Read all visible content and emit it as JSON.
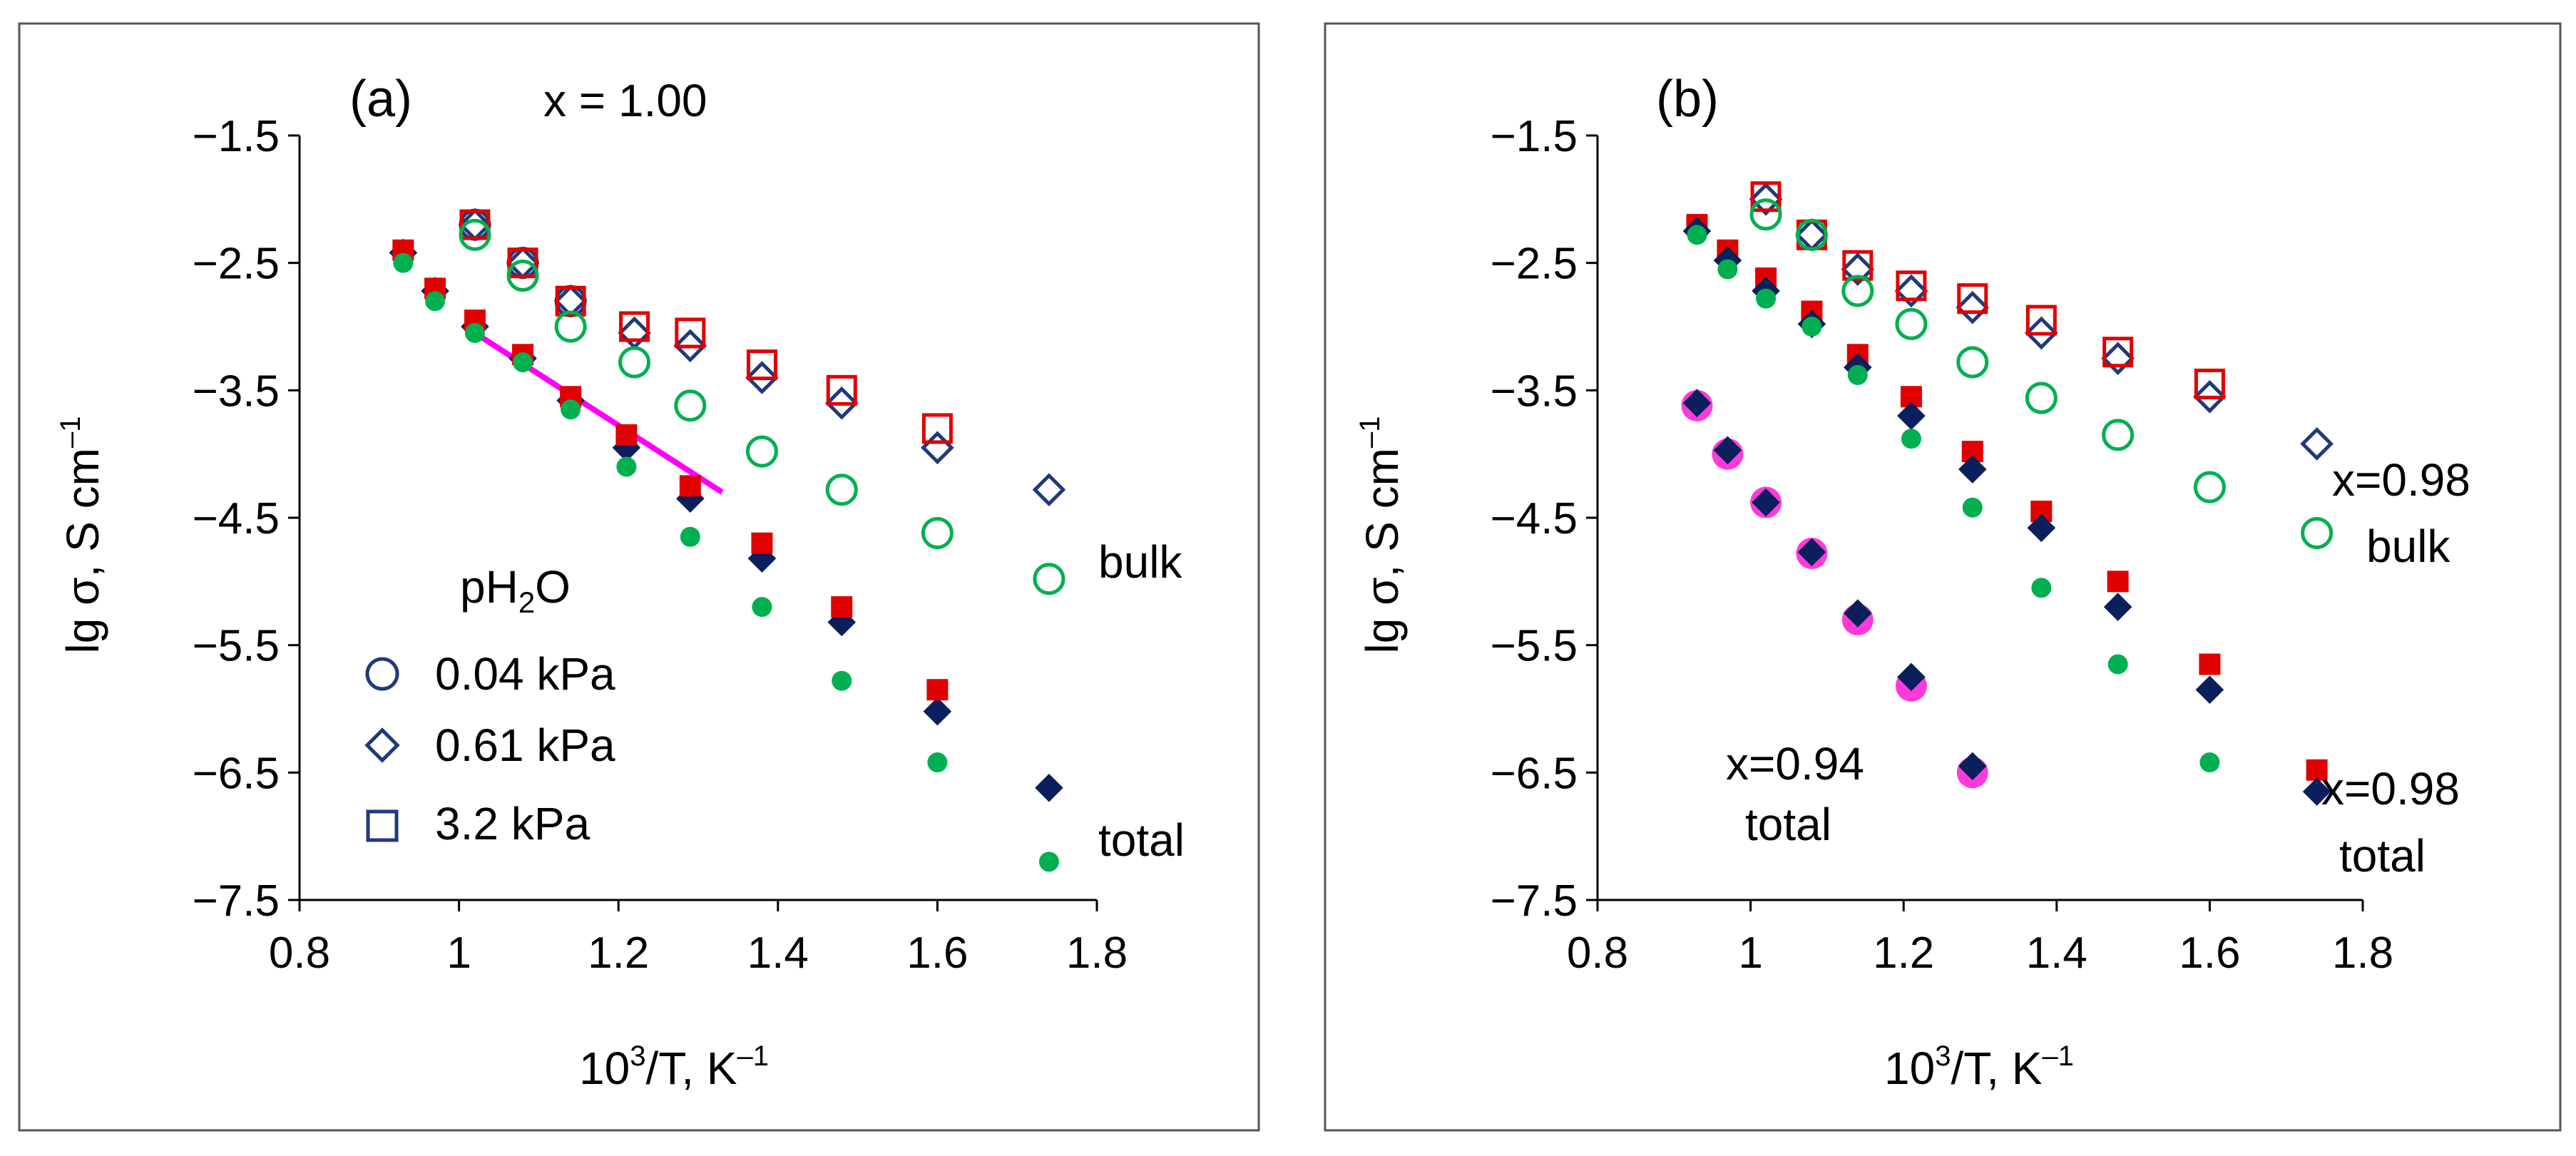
{
  "panels": [
    {
      "tag": "(a)",
      "composition": "x = 1.00",
      "xlabel_main": "10",
      "xlabel_sup": "3",
      "xlabel_rest": "/T, K",
      "xlabel_exp": "–1",
      "ylabel_main": "lg σ, S cm",
      "ylabel_exp": "–1",
      "xticks": [
        "0.8",
        "1",
        "1.2",
        "1.4",
        "1.6",
        "1.8"
      ],
      "yticks": [
        "−1.5",
        "−2.5",
        "−3.5",
        "−4.5",
        "−5.5",
        "−6.5",
        "−7.5"
      ],
      "legend_title_main": "pH",
      "legend_title_sub": "2",
      "legend_title_rest": "O",
      "legend": [
        "0.04 kPa",
        "0.61 kPa",
        "3.2 kPa"
      ],
      "labels": {
        "bulk": "bulk",
        "total": "total"
      },
      "colors": {
        "blue": "#1f3a7a",
        "navy": "#0a1f5c",
        "red": "#e00000",
        "green": "#00b050",
        "magenta": "#ff00ff"
      }
    },
    {
      "tag": "(b)",
      "xlabel_main": "10",
      "xlabel_sup": "3",
      "xlabel_rest": "/T, K",
      "xlabel_exp": "–1",
      "ylabel_main": "lg σ, S cm",
      "ylabel_exp": "–1",
      "xticks": [
        "0.8",
        "1",
        "1.2",
        "1.4",
        "1.6",
        "1.8"
      ],
      "yticks": [
        "−1.5",
        "−2.5",
        "−3.5",
        "−4.5",
        "−5.5",
        "−6.5",
        "−7.5"
      ],
      "labels": {
        "bulk_comp": "x=0.98",
        "bulk": "bulk",
        "total98_comp": "x=0.98",
        "total98": "total",
        "total94_comp": "x=0.94",
        "total94": "total"
      }
    }
  ],
  "chart_data": [
    {
      "type": "scatter",
      "xlim": [
        0.8,
        1.8
      ],
      "ylim": [
        -7.5,
        -1.5
      ],
      "grid": false,
      "series": [
        {
          "name": "0.04 kPa",
          "marker": "open-circle",
          "color": "#1f3a7a",
          "x": [
            1.02,
            1.08,
            1.14
          ],
          "y": [
            -2.2,
            -2.5,
            -2.8
          ]
        },
        {
          "name": "0.61 kPa",
          "marker": "open-diamond",
          "color": "#1f3a7a",
          "x": [
            1.02,
            1.08,
            1.14,
            1.22,
            1.29,
            1.38,
            1.48,
            1.6,
            1.74
          ],
          "y": [
            -2.2,
            -2.5,
            -2.8,
            -3.05,
            -3.15,
            -3.4,
            -3.6,
            -3.95,
            -4.28
          ]
        },
        {
          "name": "3.2 kPa",
          "marker": "open-square",
          "color": "#e00000",
          "x": [
            1.02,
            1.08,
            1.14,
            1.22,
            1.29,
            1.38,
            1.48,
            1.6
          ],
          "y": [
            -2.2,
            -2.5,
            -2.8,
            -3.0,
            -3.05,
            -3.3,
            -3.5,
            -3.8
          ]
        },
        {
          "marker": "open-circle",
          "color": "#00b050",
          "x": [
            1.02,
            1.08,
            1.14,
            1.22,
            1.29,
            1.38,
            1.48,
            1.6,
            1.74
          ],
          "y": [
            -2.28,
            -2.6,
            -3.0,
            -3.28,
            -3.62,
            -3.98,
            -4.28,
            -4.62,
            -4.98
          ]
        },
        {
          "marker": "filled-diamond",
          "color": "#0a1f5c",
          "x": [
            0.93,
            0.97,
            1.02,
            1.08,
            1.14,
            1.21,
            1.29,
            1.38,
            1.48,
            1.6,
            1.74
          ],
          "y": [
            -2.42,
            -2.72,
            -3.0,
            -3.25,
            -3.58,
            -3.95,
            -4.35,
            -4.82,
            -5.32,
            -6.02,
            -6.62
          ]
        },
        {
          "marker": "filled-square",
          "color": "#e00000",
          "x": [
            0.93,
            0.97,
            1.02,
            1.08,
            1.14,
            1.21,
            1.29,
            1.38,
            1.48,
            1.6
          ],
          "y": [
            -2.4,
            -2.7,
            -2.95,
            -3.22,
            -3.55,
            -3.85,
            -4.25,
            -4.7,
            -5.2,
            -5.85
          ]
        },
        {
          "marker": "filled-circle",
          "color": "#00b050",
          "x": [
            0.93,
            0.97,
            1.02,
            1.08,
            1.14,
            1.21,
            1.29,
            1.38,
            1.48,
            1.6,
            1.74
          ],
          "y": [
            -2.5,
            -2.8,
            -3.05,
            -3.28,
            -3.65,
            -4.1,
            -4.65,
            -5.2,
            -5.78,
            -6.42,
            -7.2
          ]
        }
      ],
      "lines": [
        {
          "color": "#ff00ff",
          "x": [
            1.02,
            1.33
          ],
          "y": [
            -3.05,
            -4.3
          ]
        }
      ]
    },
    {
      "type": "scatter",
      "xlim": [
        0.8,
        1.8
      ],
      "ylim": [
        -7.5,
        -1.5
      ],
      "grid": false,
      "series": [
        {
          "marker": "open-diamond",
          "color": "#1f3a7a",
          "x": [
            1.02,
            1.08,
            1.14,
            1.21,
            1.29,
            1.38,
            1.48,
            1.6,
            1.74
          ],
          "y": [
            -2.0,
            -2.28,
            -2.55,
            -2.72,
            -2.85,
            -3.05,
            -3.25,
            -3.55,
            -3.92
          ]
        },
        {
          "marker": "open-square",
          "color": "#e00000",
          "x": [
            1.02,
            1.08,
            1.14,
            1.21,
            1.29,
            1.38,
            1.48,
            1.6
          ],
          "y": [
            -1.98,
            -2.28,
            -2.52,
            -2.68,
            -2.78,
            -2.95,
            -3.2,
            -3.45
          ]
        },
        {
          "marker": "open-circle",
          "color": "#00b050",
          "x": [
            1.02,
            1.08,
            1.14,
            1.21,
            1.29,
            1.38,
            1.48,
            1.6,
            1.74
          ],
          "y": [
            -2.12,
            -2.28,
            -2.72,
            -2.98,
            -3.28,
            -3.56,
            -3.85,
            -4.26,
            -4.62
          ]
        },
        {
          "marker": "filled-square",
          "color": "#e00000",
          "x": [
            0.93,
            0.97,
            1.02,
            1.08,
            1.14,
            1.21,
            1.29,
            1.38,
            1.48,
            1.6,
            1.74
          ],
          "y": [
            -2.2,
            -2.4,
            -2.62,
            -2.88,
            -3.22,
            -3.55,
            -3.98,
            -4.45,
            -5.0,
            -5.65,
            -6.48
          ]
        },
        {
          "marker": "filled-diamond",
          "color": "#0a1f5c",
          "x": [
            0.93,
            0.97,
            1.02,
            1.08,
            1.14,
            1.21,
            1.29,
            1.38,
            1.48,
            1.6,
            1.74
          ],
          "y": [
            -2.25,
            -2.48,
            -2.72,
            -2.98,
            -3.32,
            -3.7,
            -4.12,
            -4.58,
            -5.2,
            -5.85,
            -6.65
          ]
        },
        {
          "marker": "filled-circle",
          "color": "#00b050",
          "x": [
            0.93,
            0.97,
            1.02,
            1.08,
            1.14,
            1.21,
            1.29,
            1.38,
            1.48,
            1.6
          ],
          "y": [
            -2.28,
            -2.55,
            -2.78,
            -3.0,
            -3.38,
            -3.88,
            -4.42,
            -5.05,
            -5.65,
            -6.42
          ]
        },
        {
          "marker": "filled-circle-large",
          "color": "#ff3ad9",
          "x": [
            0.93,
            0.97,
            1.02,
            1.08,
            1.14,
            1.21,
            1.29
          ],
          "y": [
            -3.62,
            -4.0,
            -4.38,
            -4.78,
            -5.3,
            -5.82,
            -6.5
          ]
        },
        {
          "marker": "filled-diamond",
          "color": "#0a1f5c",
          "x": [
            0.93,
            0.97,
            1.02,
            1.08,
            1.14,
            1.21,
            1.29
          ],
          "y": [
            -3.6,
            -3.97,
            -4.38,
            -4.77,
            -5.25,
            -5.75,
            -6.45
          ]
        }
      ]
    }
  ]
}
